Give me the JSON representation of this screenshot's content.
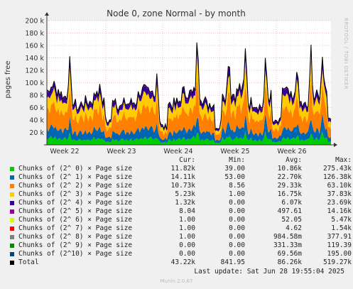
{
  "chart_data": {
    "type": "area",
    "title": "Node 0, zone Normal - by month",
    "ylabel": "pages free",
    "ylim": [
      0,
      200000
    ],
    "y_ticks": [
      {
        "value": 20000,
        "label": "20 k"
      },
      {
        "value": 40000,
        "label": "40 k"
      },
      {
        "value": 60000,
        "label": "60 k"
      },
      {
        "value": 80000,
        "label": "80 k"
      },
      {
        "value": 100000,
        "label": "100 k"
      },
      {
        "value": 120000,
        "label": "120 k"
      },
      {
        "value": 140000,
        "label": "140 k"
      },
      {
        "value": 160000,
        "label": "160 k"
      },
      {
        "value": 180000,
        "label": "180 k"
      },
      {
        "value": 200000,
        "label": "200 k"
      }
    ],
    "x_ticks": [
      "Week 22",
      "Week 23",
      "Week 24",
      "Week 25",
      "Week 26"
    ],
    "legend_headers": [
      "Cur:",
      "Min:",
      "Avg:",
      "Max:"
    ],
    "series": [
      {
        "name": "Chunks of (2^ 0) × Page size",
        "color": "#00cc00",
        "cur": "11.82k",
        "min": "39.00",
        "avg": "10.86k",
        "max": "275.43k"
      },
      {
        "name": "Chunks of (2^ 1) × Page size",
        "color": "#0066b3",
        "cur": "14.11k",
        "min": "53.00",
        "avg": "22.70k",
        "max": "126.38k"
      },
      {
        "name": "Chunks of (2^ 2) × Page size",
        "color": "#ff8000",
        "cur": "10.73k",
        "min": "8.56",
        "avg": "29.33k",
        "max": "63.10k"
      },
      {
        "name": "Chunks of (2^ 3) × Page size",
        "color": "#ffcc00",
        "cur": "5.23k",
        "min": "1.00",
        "avg": "16.75k",
        "max": "37.83k"
      },
      {
        "name": "Chunks of (2^ 4) × Page size",
        "color": "#330099",
        "cur": "1.32k",
        "min": "0.00",
        "avg": "6.07k",
        "max": "23.69k"
      },
      {
        "name": "Chunks of (2^ 5) × Page size",
        "color": "#990099",
        "cur": "8.04",
        "min": "0.00",
        "avg": "497.61",
        "max": "14.16k"
      },
      {
        "name": "Chunks of (2^ 6) × Page size",
        "color": "#ccff00",
        "cur": "1.00",
        "min": "0.00",
        "avg": "52.05",
        "max": "5.47k"
      },
      {
        "name": "Chunks of (2^ 7) × Page size",
        "color": "#ff0000",
        "cur": "1.00",
        "min": "0.00",
        "avg": "4.62",
        "max": "1.54k"
      },
      {
        "name": "Chunks of (2^ 8) × Page size",
        "color": "#808080",
        "cur": "1.00",
        "min": "0.00",
        "avg": "984.58m",
        "max": "377.91"
      },
      {
        "name": "Chunks of (2^ 9) × Page size",
        "color": "#008f00",
        "cur": "0.00",
        "min": "0.00",
        "avg": "331.33m",
        "max": "119.39"
      },
      {
        "name": "Chunks of (2^10) × Page size",
        "color": "#00487d",
        "cur": "0.00",
        "min": "0.00",
        "avg": "69.56m",
        "max": "195.00"
      }
    ],
    "total": {
      "name": "Total",
      "color": "#000000",
      "cur": "43.22k",
      "min": "841.95",
      "avg": "86.26k",
      "max": "519.27k"
    }
  },
  "side_label": "RRDTOOL / TOBI OETIKER",
  "last_update": "Last update: Sat Jun 28 19:55:04 2025",
  "munin_version": "Munin 2.0.67"
}
